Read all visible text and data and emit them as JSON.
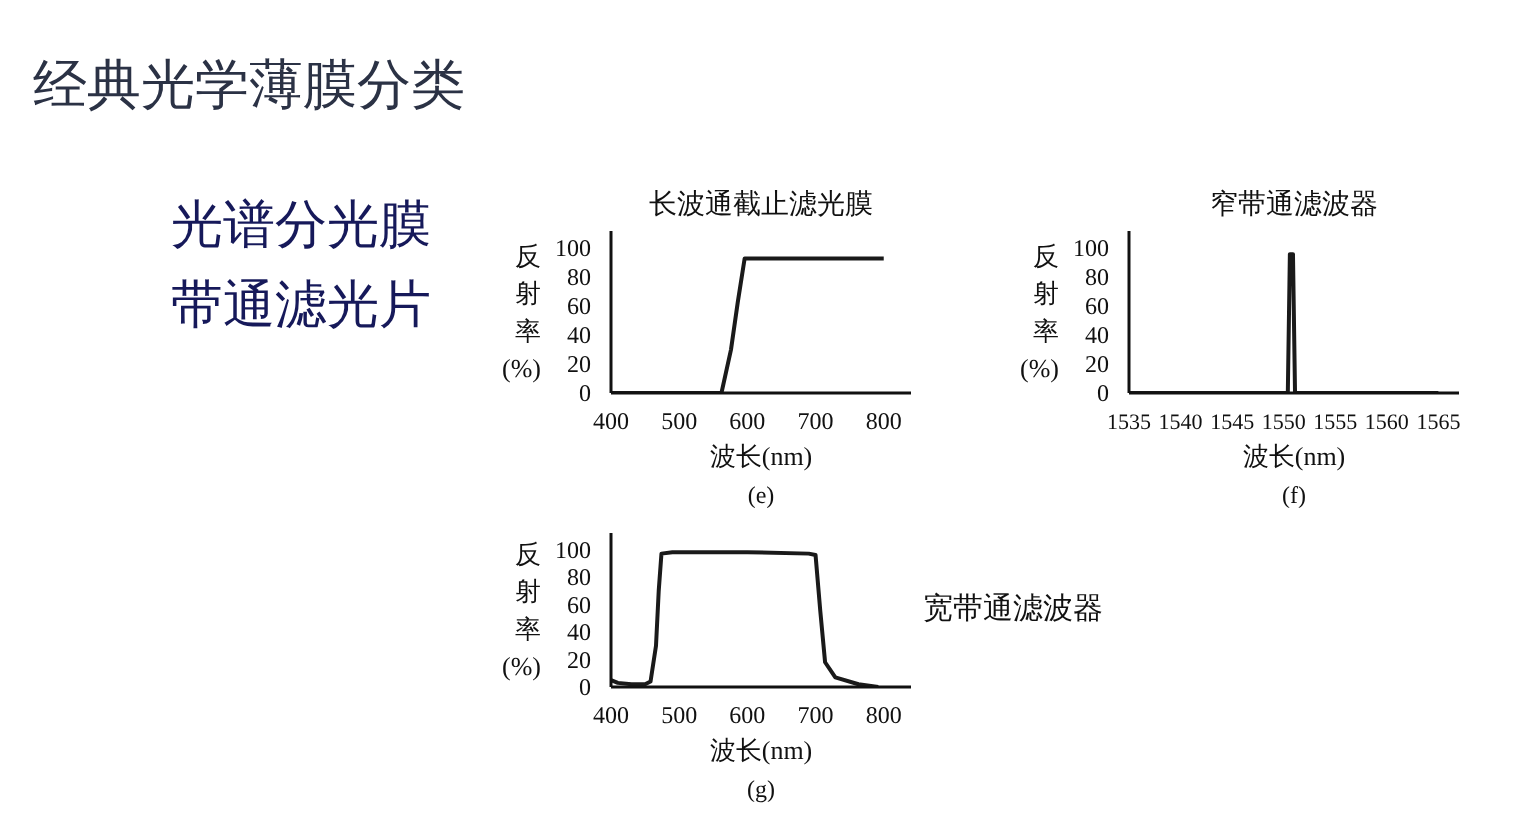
{
  "chart_data": [
    {
      "type": "other",
      "title": "经典光学薄膜分类",
      "annotations": [
        "光谱分光膜",
        "带通滤光片"
      ]
    },
    {
      "type": "line",
      "title": "长波通截止滤光膜",
      "xlabel": "波长(nm)",
      "ylabel": "反射率(%)",
      "annotations": [
        "(e)"
      ],
      "color": "#1a1a1a",
      "x": [
        400,
        562,
        576,
        586,
        596,
        800
      ],
      "values": [
        0,
        0,
        30,
        63,
        93,
        93
      ],
      "xlim": [
        400,
        840
      ],
      "ylim": [
        0,
        112
      ],
      "xticks": [
        400,
        500,
        600,
        700,
        800
      ],
      "yticks": [
        0,
        20,
        40,
        60,
        80,
        100
      ]
    },
    {
      "type": "line",
      "title": "窄带通滤波器",
      "xlabel": "波长(nm)",
      "ylabel": "反射率(%)",
      "annotations": [
        "(f)"
      ],
      "color": "#1a1a1a",
      "x": [
        1535,
        1550.4,
        1550.6,
        1550.9,
        1551.1,
        1565
      ],
      "values": [
        0,
        0,
        96,
        96,
        0,
        0
      ],
      "xlim": [
        1535,
        1567
      ],
      "ylim": [
        0,
        112
      ],
      "xticks": [
        1535,
        1540,
        1545,
        1550,
        1555,
        1560,
        1565
      ],
      "yticks": [
        0,
        20,
        40,
        60,
        80,
        100
      ]
    },
    {
      "type": "line",
      "title": "宽带通滤波器",
      "xlabel": "波长(nm)",
      "ylabel": "反射率(%)",
      "annotations": [
        "(g)"
      ],
      "color": "#1a1a1a",
      "x": [
        400,
        410,
        430,
        450,
        458,
        466,
        470,
        474,
        490,
        600,
        690,
        700,
        707,
        714,
        729,
        763,
        792
      ],
      "values": [
        5,
        3,
        2,
        2,
        4,
        30,
        70,
        97,
        98,
        98,
        97,
        96,
        55,
        18,
        7,
        2,
        0
      ],
      "xlim": [
        400,
        840
      ],
      "ylim": [
        0,
        112
      ],
      "xticks": [
        400,
        500,
        600,
        700,
        800
      ],
      "yticks": [
        0,
        20,
        40,
        60,
        80,
        100
      ]
    }
  ]
}
